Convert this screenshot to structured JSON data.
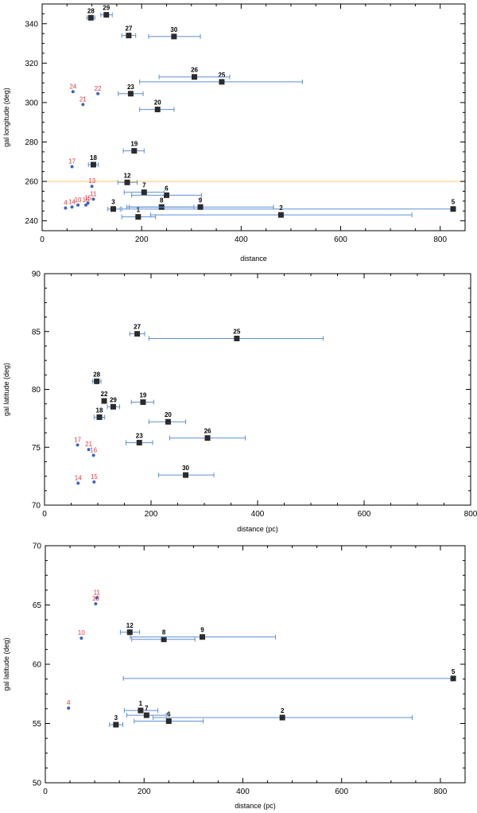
{
  "chart_data": [
    {
      "type": "scatter",
      "xlabel": "distance",
      "ylabel": "gal longitude (deg)",
      "xlim": [
        0,
        850
      ],
      "ylim": [
        235,
        350
      ],
      "xticks": [
        0,
        200,
        400,
        600,
        800
      ],
      "yticks": [
        240,
        260,
        280,
        300,
        320,
        340
      ],
      "hline": {
        "y": 260,
        "color": "#ffcc80"
      },
      "points": [
        {
          "id": "1",
          "x": 193,
          "y": 242,
          "xerr": [
            160,
            228
          ],
          "style": "sq"
        },
        {
          "id": "2",
          "x": 480,
          "y": 243,
          "xerr": [
            218,
            743
          ],
          "style": "sq"
        },
        {
          "id": "3",
          "x": 143,
          "y": 246,
          "xerr": [
            132,
            157
          ],
          "style": "sq"
        },
        {
          "id": "4",
          "x": 47,
          "y": 246.5,
          "style": "dot"
        },
        {
          "id": "5",
          "x": 826,
          "y": 246,
          "xerr": [
            160,
            826
          ],
          "style": "sq"
        },
        {
          "id": "6",
          "x": 250,
          "y": 253,
          "xerr": [
            180,
            320
          ],
          "style": "sq"
        },
        {
          "id": "7",
          "x": 205,
          "y": 254.5,
          "xerr": [
            165,
            245
          ],
          "style": "sq"
        },
        {
          "id": "8",
          "x": 240,
          "y": 247,
          "xerr": [
            170,
            305
          ],
          "style": "sq"
        },
        {
          "id": "9",
          "x": 318,
          "y": 247,
          "xerr": [
            175,
            465
          ],
          "style": "sq"
        },
        {
          "id": "10",
          "x": 72,
          "y": 248,
          "style": "dot"
        },
        {
          "id": "11",
          "x": 103,
          "y": 251,
          "style": "dot"
        },
        {
          "id": "12",
          "x": 171,
          "y": 259.5,
          "xerr": [
            152,
            191
          ],
          "style": "sq"
        },
        {
          "id": "13",
          "x": 100,
          "y": 257.5,
          "style": "dot"
        },
        {
          "id": "14",
          "x": 60,
          "y": 247,
          "style": "dot"
        },
        {
          "id": "15",
          "x": 92,
          "y": 249,
          "style": "dot"
        },
        {
          "id": "16",
          "x": 88,
          "y": 248,
          "style": "dot"
        },
        {
          "id": "17",
          "x": 60,
          "y": 267.5,
          "style": "dot"
        },
        {
          "id": "18",
          "x": 103,
          "y": 268.5,
          "xerr": [
            93,
            113
          ],
          "style": "sq"
        },
        {
          "id": "19",
          "x": 185,
          "y": 275.5,
          "xerr": [
            163,
            205
          ],
          "style": "sq"
        },
        {
          "id": "20",
          "x": 232,
          "y": 296.5,
          "xerr": [
            196,
            265
          ],
          "style": "sq"
        },
        {
          "id": "21",
          "x": 82,
          "y": 299,
          "style": "dot"
        },
        {
          "id": "22",
          "x": 112,
          "y": 304.5,
          "style": "dot"
        },
        {
          "id": "23",
          "x": 178,
          "y": 304.5,
          "xerr": [
            153,
            203
          ],
          "style": "sq"
        },
        {
          "id": "24",
          "x": 62,
          "y": 305.5,
          "style": "dot"
        },
        {
          "id": "25",
          "x": 361,
          "y": 310.5,
          "xerr": [
            196,
            523
          ],
          "style": "sq"
        },
        {
          "id": "26",
          "x": 306,
          "y": 313,
          "xerr": [
            235,
            377
          ],
          "style": "sq"
        },
        {
          "id": "27",
          "x": 174,
          "y": 334,
          "xerr": [
            160,
            188
          ],
          "style": "sq"
        },
        {
          "id": "28",
          "x": 98,
          "y": 343,
          "xerr": [
            90,
            106
          ],
          "style": "sq"
        },
        {
          "id": "29",
          "x": 129,
          "y": 344.5,
          "xerr": [
            118,
            141
          ],
          "style": "sq"
        },
        {
          "id": "30",
          "x": 265,
          "y": 333.5,
          "xerr": [
            214,
            318
          ],
          "style": "sq"
        }
      ]
    },
    {
      "type": "scatter",
      "xlabel": "distance (pc)",
      "ylabel": "gal latitude (deg)",
      "xlim": [
        0,
        800
      ],
      "ylim": [
        70,
        90
      ],
      "xticks": [
        0,
        200,
        400,
        600,
        800
      ],
      "yticks": [
        70,
        75,
        80,
        85,
        90
      ],
      "points": [
        {
          "id": "27",
          "x": 174,
          "y": 84.8,
          "xerr": [
            160,
            188
          ],
          "style": "sq"
        },
        {
          "id": "25",
          "x": 361,
          "y": 84.4,
          "xerr": [
            196,
            523
          ],
          "style": "sq"
        },
        {
          "id": "28",
          "x": 98,
          "y": 80.7,
          "xerr": [
            90,
            106
          ],
          "style": "sq"
        },
        {
          "id": "22",
          "x": 112,
          "y": 79.0,
          "style": "sq"
        },
        {
          "id": "29",
          "x": 129,
          "y": 78.5,
          "xerr": [
            118,
            141
          ],
          "style": "sq"
        },
        {
          "id": "19",
          "x": 185,
          "y": 78.9,
          "xerr": [
            163,
            205
          ],
          "style": "sq"
        },
        {
          "id": "18",
          "x": 103,
          "y": 77.6,
          "xerr": [
            93,
            113
          ],
          "style": "sq"
        },
        {
          "id": "20",
          "x": 232,
          "y": 77.2,
          "xerr": [
            196,
            265
          ],
          "style": "sq"
        },
        {
          "id": "26",
          "x": 306,
          "y": 75.8,
          "xerr": [
            235,
            377
          ],
          "style": "sq"
        },
        {
          "id": "23",
          "x": 178,
          "y": 75.4,
          "xerr": [
            153,
            203
          ],
          "style": "sq"
        },
        {
          "id": "17",
          "x": 62,
          "y": 75.2,
          "style": "dot"
        },
        {
          "id": "21",
          "x": 83,
          "y": 74.8,
          "style": "dot"
        },
        {
          "id": "16",
          "x": 92,
          "y": 74.3,
          "style": "dot"
        },
        {
          "id": "30",
          "x": 265,
          "y": 72.6,
          "xerr": [
            214,
            318
          ],
          "style": "sq"
        },
        {
          "id": "14",
          "x": 63,
          "y": 71.9,
          "style": "dot"
        },
        {
          "id": "15",
          "x": 93,
          "y": 72.0,
          "style": "dot"
        }
      ]
    },
    {
      "type": "scatter",
      "xlabel": "distance (pc)",
      "ylabel": "gal latitude (deg)",
      "xlim": [
        0,
        850
      ],
      "ylim": [
        50,
        70
      ],
      "xticks": [
        0,
        200,
        400,
        600,
        800
      ],
      "yticks": [
        50,
        55,
        60,
        65,
        70
      ],
      "points": [
        {
          "id": "11",
          "x": 104,
          "y": 65.6,
          "style": "dot"
        },
        {
          "id": "13",
          "x": 102,
          "y": 65.1,
          "style": "dot"
        },
        {
          "id": "12",
          "x": 171,
          "y": 62.7,
          "xerr": [
            152,
            191
          ],
          "style": "sq"
        },
        {
          "id": "8",
          "x": 240,
          "y": 62.1,
          "xerr": [
            175,
            303
          ],
          "style": "sq"
        },
        {
          "id": "9",
          "x": 318,
          "y": 62.3,
          "xerr": [
            172,
            466
          ],
          "style": "sq"
        },
        {
          "id": "10",
          "x": 73,
          "y": 62.2,
          "style": "dot"
        },
        {
          "id": "5",
          "x": 826,
          "y": 58.8,
          "xerr": [
            158,
            826
          ],
          "style": "sq"
        },
        {
          "id": "4",
          "x": 47,
          "y": 56.3,
          "style": "dot"
        },
        {
          "id": "1",
          "x": 193,
          "y": 56.1,
          "xerr": [
            160,
            228
          ],
          "style": "sq"
        },
        {
          "id": "7",
          "x": 205,
          "y": 55.7,
          "xerr": [
            165,
            245
          ],
          "style": "sq"
        },
        {
          "id": "2",
          "x": 480,
          "y": 55.5,
          "xerr": [
            218,
            743
          ],
          "style": "sq"
        },
        {
          "id": "6",
          "x": 250,
          "y": 55.2,
          "xerr": [
            180,
            320
          ],
          "style": "sq"
        },
        {
          "id": "3",
          "x": 143,
          "y": 54.9,
          "xerr": [
            130,
            157
          ],
          "style": "sq"
        }
      ]
    }
  ]
}
